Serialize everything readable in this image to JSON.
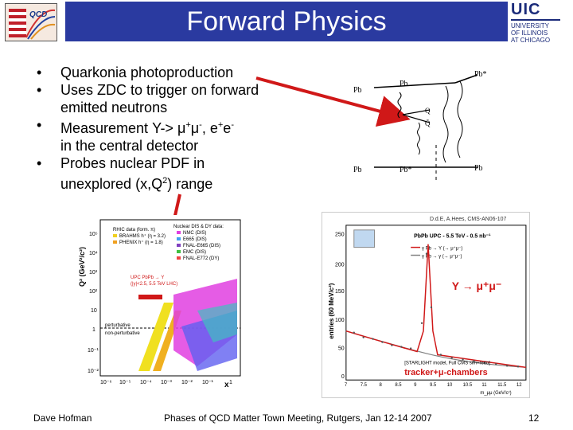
{
  "header": {
    "title": "Forward Physics",
    "logo_left_text": "QCD",
    "logo_right": {
      "name": "UIC",
      "line1": "UNIVERSITY",
      "line2": "OF ILLINOIS",
      "line3": "AT CHICAGO"
    }
  },
  "bullets": [
    {
      "text": "Quarkonia photoproduction"
    },
    {
      "text": "Uses ZDC to trigger on forward emitted neutrons"
    },
    {
      "pre": "Measurement ",
      "upsilon": "Υ",
      "arrow": "->",
      "mu": "μ",
      "plus": "+",
      "minus": "-",
      "comma": ", ",
      "e": "e"
    },
    {
      "line1": "in the central detector"
    },
    {
      "text": "Probes nuclear PDF in"
    },
    {
      "line2a": "unexplored (x,Q",
      "sup": "2",
      "line2b": ") range"
    }
  ],
  "feynman": {
    "pb_in_top": "Pb",
    "pb_out_top": "Pb",
    "pb_star_top": "Pb*",
    "pb_in_bot": "Pb",
    "pb_star_bot": "Pb*",
    "pb_out_bot": "Pb",
    "q": "Q",
    "qbar": "Q̄"
  },
  "left_plot": {
    "ylabel": "Q² (GeV²/c²)",
    "xlabel": "x",
    "legend": [
      "RHIC data (form. π)",
      "BRAHMS h⁺ (η = 3.2)",
      "PHENIX h⁺ (η = 1.8)",
      "Nuclear DIS & DY data:",
      "NMC (DIS)",
      "E665 (DIS)",
      "FNAL-E665 (DIS)",
      "EMC (DIS)",
      "FNAL-E772 (DY)"
    ],
    "annotation1": "UPC PbPb → Υ",
    "annotation2": "(|y|<2.5, 5.5 TeV LHC)",
    "label_pert": "perturbative",
    "label_nonpert": "non-perturbative",
    "yticks": [
      "10⁵",
      "10⁴",
      "10³",
      "10²",
      "10",
      "1",
      "10⁻¹",
      "10⁻²"
    ],
    "xticks": [
      "10⁻⁶",
      "10⁻⁵",
      "10⁻⁴",
      "10⁻³",
      "10⁻²",
      "10⁻¹",
      "1"
    ]
  },
  "right_plot": {
    "credit": "D.d.E, A.Hees, CMS-AN06-107",
    "title": "PbPb UPC - 5.5 TeV - 0.5 nb⁻¹",
    "legend1": "γ Pb → Υ (→ μ⁺μ⁻)",
    "legend2": "γ Pb → γ (→ μ⁺μ⁻)",
    "ylabel": "entries (60 MeV/c²)",
    "xlabel": "m_μμ (GeV/c²)",
    "decay": "Υ → μ⁺μ⁻",
    "model": "[STARLIGHT model, Full CMS sim+reco]",
    "tracker": "tracker+μ-chambers",
    "yticks": [
      "250",
      "200",
      "150",
      "100",
      "50",
      "0"
    ],
    "xticks": [
      "7",
      "7.5",
      "8",
      "8.5",
      "9",
      "9.5",
      "10",
      "10.5",
      "11",
      "11.5",
      "12"
    ]
  },
  "footer": {
    "author": "Dave Hofman",
    "event": "Phases of QCD Matter Town Meeting, Rutgers, Jan 12-14 2007",
    "page": "12"
  },
  "colors": {
    "title_bar": "#2a3aa0",
    "arrow": "#d01818"
  }
}
